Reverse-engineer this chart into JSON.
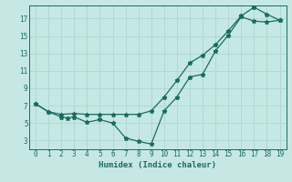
{
  "xlabel": "Humidex (Indice chaleur)",
  "bg_color": "#c5e8e5",
  "grid_color": "#b0d8d4",
  "line_color": "#1a6b60",
  "line1_x": [
    0,
    1,
    2,
    2.5,
    3,
    4,
    5,
    6,
    7,
    8,
    9,
    10,
    11,
    12,
    13,
    14,
    15,
    16,
    17,
    18,
    19
  ],
  "line1_y": [
    7.2,
    6.3,
    5.7,
    5.6,
    5.7,
    5.1,
    5.4,
    5.0,
    3.3,
    2.9,
    2.6,
    6.4,
    8.0,
    10.3,
    10.6,
    13.3,
    15.1,
    17.2,
    16.7,
    16.6,
    16.8
  ],
  "line2_x": [
    0,
    1,
    2,
    3,
    4,
    5,
    6,
    7,
    8,
    9,
    10,
    11,
    12,
    13,
    14,
    15,
    16,
    17,
    18,
    19
  ],
  "line2_y": [
    7.2,
    6.3,
    6.0,
    6.1,
    6.0,
    6.0,
    6.0,
    6.0,
    6.0,
    6.4,
    8.0,
    9.9,
    11.9,
    12.8,
    14.0,
    15.6,
    17.3,
    18.3,
    17.5,
    16.8
  ],
  "xlim": [
    -0.5,
    19.5
  ],
  "ylim": [
    2.0,
    18.5
  ],
  "yticks": [
    3,
    5,
    7,
    9,
    11,
    13,
    15,
    17
  ],
  "xticks": [
    0,
    1,
    2,
    3,
    4,
    5,
    6,
    7,
    8,
    9,
    10,
    11,
    12,
    13,
    14,
    15,
    16,
    17,
    18,
    19
  ]
}
